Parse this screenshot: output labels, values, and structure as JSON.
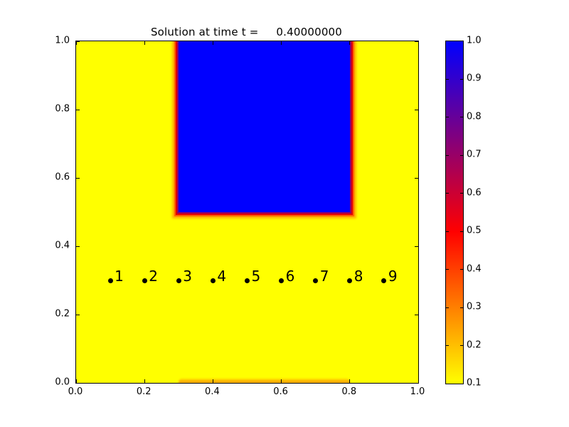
{
  "chart_data": {
    "type": "heatmap",
    "title": "Solution at time t =     0.40000000",
    "xlabel": "",
    "ylabel": "",
    "xlim": [
      0.0,
      1.0
    ],
    "ylim": [
      0.0,
      1.0
    ],
    "grid": false,
    "x_ticks": [
      0.0,
      0.2,
      0.4,
      0.6,
      0.8,
      1.0
    ],
    "x_tick_labels": [
      "0.0",
      "0.2",
      "0.4",
      "0.6",
      "0.8",
      "1.0"
    ],
    "y_ticks": [
      0.0,
      0.2,
      0.4,
      0.6,
      0.8,
      1.0
    ],
    "y_tick_labels": [
      "0.0",
      "0.2",
      "0.4",
      "0.6",
      "0.8",
      "1.0"
    ],
    "background_value": 0.1,
    "background_color": "#ffff00",
    "regions": [
      {
        "name": "hot-square",
        "x": [
          0.3,
          0.8
        ],
        "y": [
          0.5,
          1.0
        ],
        "value": 1.0
      },
      {
        "name": "bottom-strip",
        "x": [
          0.3,
          0.8
        ],
        "y": [
          0.0,
          0.015
        ],
        "value": 0.3
      }
    ],
    "points": {
      "y": 0.3,
      "marker": "black-dot",
      "items": [
        {
          "label": "1",
          "x": 0.1
        },
        {
          "label": "2",
          "x": 0.2
        },
        {
          "label": "3",
          "x": 0.3
        },
        {
          "label": "4",
          "x": 0.4
        },
        {
          "label": "5",
          "x": 0.5
        },
        {
          "label": "6",
          "x": 0.6
        },
        {
          "label": "7",
          "x": 0.7
        },
        {
          "label": "8",
          "x": 0.8
        },
        {
          "label": "9",
          "x": 0.9
        }
      ]
    },
    "colorbar": {
      "min": 0.1,
      "max": 1.0,
      "tick_labels": [
        "1.0",
        "0.9",
        "0.8",
        "0.7",
        "0.6",
        "0.5",
        "0.4",
        "0.3",
        "0.2",
        "0.1"
      ],
      "tick_values": [
        1.0,
        0.9,
        0.8,
        0.7,
        0.6,
        0.5,
        0.4,
        0.3,
        0.2,
        0.1
      ],
      "colormap_stops": [
        {
          "value": 0.1,
          "color": "#ffff00"
        },
        {
          "value": 0.5,
          "color": "#ff0000"
        },
        {
          "value": 1.0,
          "color": "#0000ff"
        }
      ]
    }
  }
}
